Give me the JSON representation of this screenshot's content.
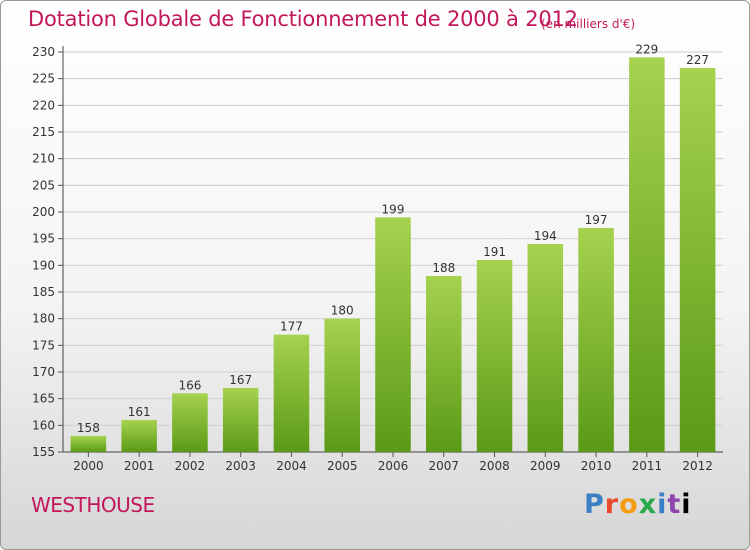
{
  "title": "Dotation Globale de Fonctionnement de 2000 à 2012",
  "unit_note": "(en milliers d'€)",
  "commune": "WESTHOUSE",
  "logo_text": "Proxiti",
  "colors": {
    "title": "#c2185b",
    "bar_light": "#a6d24f",
    "bar_dark": "#5a9a16",
    "grid": "#cfcfcf"
  },
  "chart_data": {
    "type": "bar",
    "title": "Dotation Globale de Fonctionnement de 2000 à 2012",
    "xlabel": "",
    "ylabel": "",
    "categories": [
      "2000",
      "2001",
      "2002",
      "2003",
      "2004",
      "2005",
      "2006",
      "2007",
      "2008",
      "2009",
      "2010",
      "2011",
      "2012"
    ],
    "values": [
      158,
      161,
      166,
      167,
      177,
      180,
      199,
      188,
      191,
      194,
      197,
      229,
      227
    ],
    "ylim": [
      155,
      230
    ],
    "yticks": [
      155,
      160,
      165,
      170,
      175,
      180,
      185,
      190,
      195,
      200,
      205,
      210,
      215,
      220,
      225,
      230
    ],
    "grid": true,
    "legend": "none"
  }
}
